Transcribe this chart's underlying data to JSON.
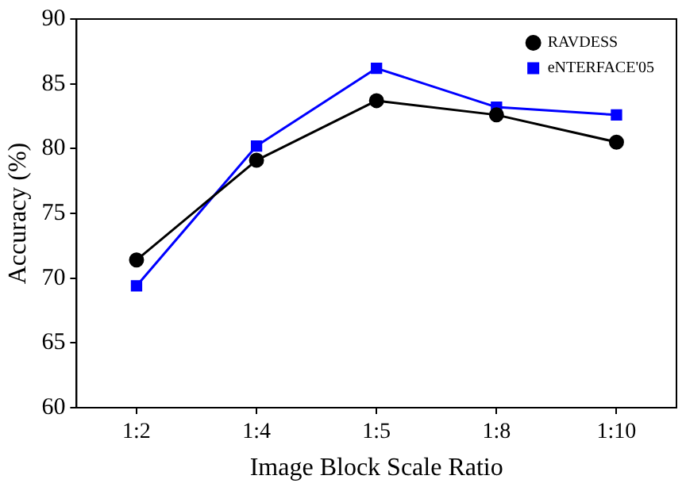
{
  "chart_data": {
    "type": "line",
    "xlabel": "Image Block Scale Ratio",
    "ylabel": "Accuracy (%)",
    "categories": [
      "1:2",
      "1:4",
      "1:5",
      "1:8",
      "1:10"
    ],
    "series": [
      {
        "name": "RAVDESS",
        "color": "#000000",
        "marker": "circle",
        "values": [
          71.4,
          79.1,
          83.7,
          82.6,
          80.5
        ]
      },
      {
        "name": "eNTERFACE'05",
        "color": "#0000ff",
        "marker": "square",
        "values": [
          69.4,
          80.2,
          86.2,
          83.2,
          82.6
        ]
      }
    ],
    "ylim": [
      60,
      90
    ],
    "yticks": [
      60,
      65,
      70,
      75,
      80,
      85,
      90
    ],
    "grid": false,
    "legend": "top right",
    "line_style": "solid"
  }
}
